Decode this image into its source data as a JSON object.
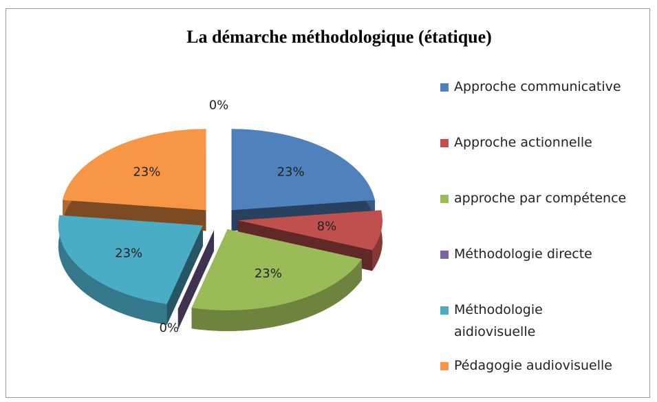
{
  "chart_data": {
    "type": "pie3d",
    "title": "La démarche méthodologique (étatique)",
    "categories": [
      null,
      "Approche communicative",
      "Approche actionnelle",
      "approche par compétence",
      "Méthodologie directe",
      "Méthodologie aidiovisuelle",
      "Pédagogie audiovisuelle"
    ],
    "values": [
      0,
      23,
      8,
      23,
      0,
      23,
      23
    ],
    "value_labels": [
      "0%",
      "23%",
      "8%",
      "23%",
      "0%",
      "23%",
      "23%"
    ],
    "colors": [
      null,
      "#4f81bd",
      "#c0504d",
      "#9bbb59",
      "#8064a2",
      "#4bacc6",
      "#f79646"
    ],
    "legend": "right"
  }
}
